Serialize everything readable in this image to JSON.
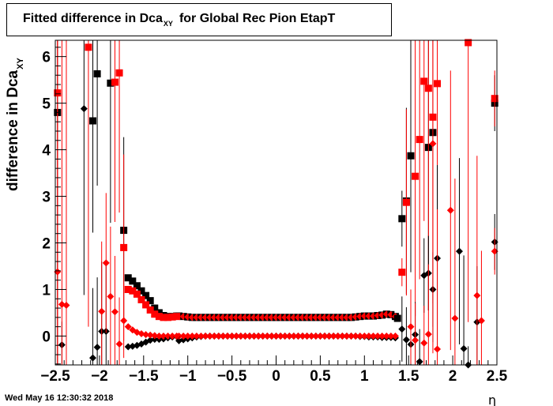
{
  "chart_data": {
    "type": "scatter",
    "title_main": "Fitted difference in Dca",
    "title_sub": "XY",
    "title_rest": "for Global Rec Pion EtapT",
    "ylabel_main": "difference in Dca",
    "ylabel_sub": "XY",
    "xlabel": "η",
    "xlim": [
      -2.5,
      2.5
    ],
    "ylim": [
      -0.62,
      6.35
    ],
    "x_ticks": [
      "−2.5",
      "−2",
      "−1.5",
      "−1",
      "−0.5",
      "0",
      "0.5",
      "1",
      "1.5",
      "2",
      "2.5"
    ],
    "x_tick_values": [
      -2.5,
      -2,
      -1.5,
      -1,
      -0.5,
      0,
      0.5,
      1,
      1.5,
      2,
      2.5
    ],
    "y_ticks": [
      "0",
      "1",
      "2",
      "3",
      "4",
      "5",
      "6"
    ],
    "y_tick_values": [
      0,
      1,
      2,
      3,
      4,
      5,
      6
    ],
    "colors": {
      "black": "#000000",
      "red": "#ff0000"
    },
    "series": [
      {
        "marker": "square",
        "color": "#000000",
        "points": [
          {
            "x": -2.475,
            "y": 4.8,
            "e": 6.0
          },
          {
            "x": -2.075,
            "y": 4.62,
            "e": 2.4
          },
          {
            "x": -2.025,
            "y": 5.63,
            "e": 2.4
          },
          {
            "x": -1.875,
            "y": 5.43,
            "e": 3.0
          },
          {
            "x": -1.725,
            "y": 2.27,
            "e": 2.0
          },
          {
            "x": -1.675,
            "y": 1.25,
            "e": 0.0
          },
          {
            "x": -1.625,
            "y": 1.18,
            "e": 0.0
          },
          {
            "x": -1.575,
            "y": 1.08,
            "e": 0.0
          },
          {
            "x": -1.525,
            "y": 0.97,
            "e": 0.0
          },
          {
            "x": -1.475,
            "y": 0.87,
            "e": 0.0
          },
          {
            "x": -1.425,
            "y": 0.76,
            "e": 0.0
          },
          {
            "x": -1.375,
            "y": 0.6,
            "e": 0.0
          },
          {
            "x": -1.325,
            "y": 0.5,
            "e": 0.0
          },
          {
            "x": -1.275,
            "y": 0.44,
            "e": 0.0
          },
          {
            "x": -1.225,
            "y": 0.42,
            "e": 0.0
          },
          {
            "x": -1.175,
            "y": 0.42,
            "e": 0.0
          },
          {
            "x": -1.125,
            "y": 0.43,
            "e": 0.0
          },
          {
            "x": 1.375,
            "y": 0.38,
            "e": 0.0
          },
          {
            "x": 1.425,
            "y": 2.52,
            "e": 0.6
          },
          {
            "x": 1.475,
            "y": 2.9,
            "e": 2.0
          },
          {
            "x": 1.525,
            "y": 3.87,
            "e": 2.5
          },
          {
            "x": 1.725,
            "y": 4.05,
            "e": 3.5
          },
          {
            "x": 1.775,
            "y": 4.37,
            "e": 4.5
          },
          {
            "x": 2.475,
            "y": 5.0,
            "e": 0.6
          }
        ]
      },
      {
        "marker": "square",
        "color": "#ff0000",
        "points": [
          {
            "x": -2.475,
            "y": 5.22,
            "e": 6.0
          },
          {
            "x": -2.125,
            "y": 6.2,
            "e": 6.0
          },
          {
            "x": -1.825,
            "y": 5.45,
            "e": 3.0
          },
          {
            "x": -1.775,
            "y": 5.65,
            "e": 3.0
          },
          {
            "x": -1.725,
            "y": 1.9,
            "e": 2.0
          },
          {
            "x": -1.675,
            "y": 1.0,
            "e": 0.0
          },
          {
            "x": -1.625,
            "y": 0.97,
            "e": 0.0
          },
          {
            "x": -1.575,
            "y": 0.9,
            "e": 0.0
          },
          {
            "x": -1.525,
            "y": 0.78,
            "e": 0.0
          },
          {
            "x": -1.475,
            "y": 0.67,
            "e": 0.0
          },
          {
            "x": -1.425,
            "y": 0.56,
            "e": 0.0
          },
          {
            "x": -1.375,
            "y": 0.47,
            "e": 0.0
          },
          {
            "x": -1.325,
            "y": 0.42,
            "e": 0.0
          },
          {
            "x": -1.275,
            "y": 0.4,
            "e": 0.0
          },
          {
            "x": -1.225,
            "y": 0.4,
            "e": 0.0
          },
          {
            "x": -1.175,
            "y": 0.41,
            "e": 0.0
          },
          {
            "x": -1.125,
            "y": 0.42,
            "e": 0.0
          },
          {
            "x": 1.425,
            "y": 1.37,
            "e": 0.3
          },
          {
            "x": 1.475,
            "y": 2.87,
            "e": 2.0
          },
          {
            "x": 1.575,
            "y": 3.43,
            "e": 3.0
          },
          {
            "x": 1.625,
            "y": 4.22,
            "e": 3.0
          },
          {
            "x": 1.675,
            "y": 5.47,
            "e": 3.0
          },
          {
            "x": 1.725,
            "y": 5.32,
            "e": 4.0
          },
          {
            "x": 1.775,
            "y": 4.7,
            "e": 4.0
          },
          {
            "x": 1.825,
            "y": 5.42,
            "e": 4.0
          },
          {
            "x": 2.175,
            "y": 6.3,
            "e": 6.0
          },
          {
            "x": 2.475,
            "y": 5.1,
            "e": 0.6
          }
        ]
      },
      {
        "marker": "diamond",
        "color": "#000000",
        "points": [
          {
            "x": -2.425,
            "y": -0.19,
            "e": 0.5
          },
          {
            "x": -2.175,
            "y": 4.88,
            "e": 4.0
          },
          {
            "x": -2.075,
            "y": -0.47,
            "e": 1.5
          },
          {
            "x": -2.025,
            "y": -0.24,
            "e": 1.5
          },
          {
            "x": -1.975,
            "y": 0.1,
            "e": 1.5
          },
          {
            "x": -1.925,
            "y": 0.1,
            "e": 1.5
          },
          {
            "x": 1.425,
            "y": 0.15,
            "e": 0.7
          },
          {
            "x": 1.475,
            "y": -0.08,
            "e": 0.7
          },
          {
            "x": 1.525,
            "y": -0.18,
            "e": 0.8
          },
          {
            "x": 1.575,
            "y": 0.03,
            "e": 0.7
          },
          {
            "x": 1.625,
            "y": -0.55,
            "e": 0.7
          },
          {
            "x": 1.675,
            "y": 1.3,
            "e": 0.8
          },
          {
            "x": 1.725,
            "y": 1.35,
            "e": 0.8
          },
          {
            "x": 1.775,
            "y": 1.0,
            "e": 0.8
          },
          {
            "x": 1.825,
            "y": 1.67,
            "e": 2.0
          },
          {
            "x": 2.075,
            "y": 1.82,
            "e": 2.0
          },
          {
            "x": 2.125,
            "y": -0.27,
            "e": 2.0
          },
          {
            "x": 2.175,
            "y": -0.62,
            "e": 0.4
          },
          {
            "x": 2.275,
            "y": 0.3,
            "e": 1.2
          },
          {
            "x": 2.475,
            "y": 2.02,
            "e": 0.6
          }
        ]
      },
      {
        "marker": "diamond",
        "color": "#ff0000",
        "points": [
          {
            "x": -2.475,
            "y": 1.38,
            "e": 6.0
          },
          {
            "x": -2.425,
            "y": 0.68,
            "e": 6.0
          },
          {
            "x": -2.375,
            "y": 0.66,
            "e": 6.0
          },
          {
            "x": -1.975,
            "y": 0.53,
            "e": 1.5
          },
          {
            "x": -1.925,
            "y": 1.57,
            "e": 1.5
          },
          {
            "x": -1.875,
            "y": 0.85,
            "e": 1.5
          },
          {
            "x": -1.825,
            "y": 0.52,
            "e": 1.2
          },
          {
            "x": -1.775,
            "y": -0.17,
            "e": 1.0
          },
          {
            "x": -1.725,
            "y": 0.33,
            "e": 0.8
          },
          {
            "x": 1.525,
            "y": 0.2,
            "e": 0.8
          },
          {
            "x": 1.575,
            "y": -0.09,
            "e": 0.8
          },
          {
            "x": 1.675,
            "y": -0.15,
            "e": 0.8
          },
          {
            "x": 1.725,
            "y": 0.04,
            "e": 1.5
          },
          {
            "x": 1.775,
            "y": 4.13,
            "e": 4.5
          },
          {
            "x": 1.825,
            "y": -0.28,
            "e": 3.0
          },
          {
            "x": 1.975,
            "y": 2.7,
            "e": 3.0
          },
          {
            "x": 2.025,
            "y": 0.38,
            "e": 3.0
          },
          {
            "x": 2.275,
            "y": 0.87,
            "e": 3.0
          },
          {
            "x": 2.325,
            "y": 0.33,
            "e": 1.5
          },
          {
            "x": 2.475,
            "y": 1.82,
            "e": 0.5
          }
        ]
      }
    ],
    "central_band": {
      "x_start": -1.1,
      "x_end": 1.35,
      "step": 0.05,
      "upper_values": [
        0.43,
        0.42,
        0.41,
        0.4,
        0.4,
        0.4,
        0.4,
        0.4,
        0.4,
        0.4,
        0.4,
        0.4,
        0.4,
        0.4,
        0.4,
        0.4,
        0.4,
        0.4,
        0.4,
        0.4,
        0.4,
        0.4,
        0.4,
        0.4,
        0.4,
        0.4,
        0.4,
        0.4,
        0.4,
        0.4,
        0.4,
        0.4,
        0.4,
        0.4,
        0.4,
        0.4,
        0.4,
        0.4,
        0.4,
        0.4,
        0.41,
        0.42,
        0.43,
        0.43,
        0.43,
        0.44,
        0.45,
        0.47,
        0.46,
        0.42
      ],
      "lower_black": [
        -0.1,
        -0.08,
        -0.06,
        -0.04,
        -0.02,
        -0.01,
        0.0,
        0.0,
        0.0,
        0.0,
        0.0,
        0.0,
        0.0,
        0.0,
        0.0,
        0.0,
        0.0,
        0.0,
        0.0,
        0.0,
        0.0,
        0.0,
        0.0,
        0.0,
        0.0,
        0.0,
        0.0,
        0.0,
        0.0,
        0.0,
        0.0,
        0.0,
        0.0,
        0.0,
        0.0,
        0.0,
        0.0,
        0.0,
        0.0,
        0.0,
        0.0,
        -0.01,
        -0.01,
        -0.02,
        -0.02,
        -0.02,
        -0.03,
        -0.03,
        -0.03,
        -0.04
      ],
      "lower_red": [
        0.0,
        0.0,
        0.0,
        0.0,
        0.0,
        0.0,
        0.0,
        0.0,
        0.0,
        0.0,
        0.0,
        0.0,
        0.0,
        0.0,
        0.0,
        0.0,
        0.0,
        0.0,
        0.0,
        0.0,
        0.0,
        0.0,
        0.0,
        0.0,
        0.0,
        0.0,
        0.0,
        0.0,
        0.0,
        0.0,
        0.0,
        0.0,
        0.0,
        0.0,
        0.0,
        0.0,
        0.0,
        0.0,
        0.0,
        0.0,
        0.0,
        0.0,
        0.0,
        0.0,
        0.0,
        0.0,
        0.0,
        0.0,
        0.0,
        0.0
      ]
    },
    "left_transition": {
      "x": [
        -1.675,
        -1.625,
        -1.575,
        -1.525,
        -1.475,
        -1.425,
        -1.375,
        -1.325,
        -1.275,
        -1.225,
        -1.175,
        -1.125
      ],
      "black_diamond": [
        -0.23,
        -0.22,
        -0.2,
        -0.17,
        -0.13,
        -0.09,
        -0.07,
        -0.07,
        -0.06,
        -0.04,
        -0.02,
        -0.01
      ],
      "red_diamond": [
        0.2,
        0.13,
        0.08,
        0.05,
        0.03,
        0.02,
        0.01,
        0.0,
        0.0,
        0.0,
        0.0,
        0.0
      ]
    }
  },
  "footer": {
    "timestamp": "Wed May 16 12:30:32 2018"
  }
}
